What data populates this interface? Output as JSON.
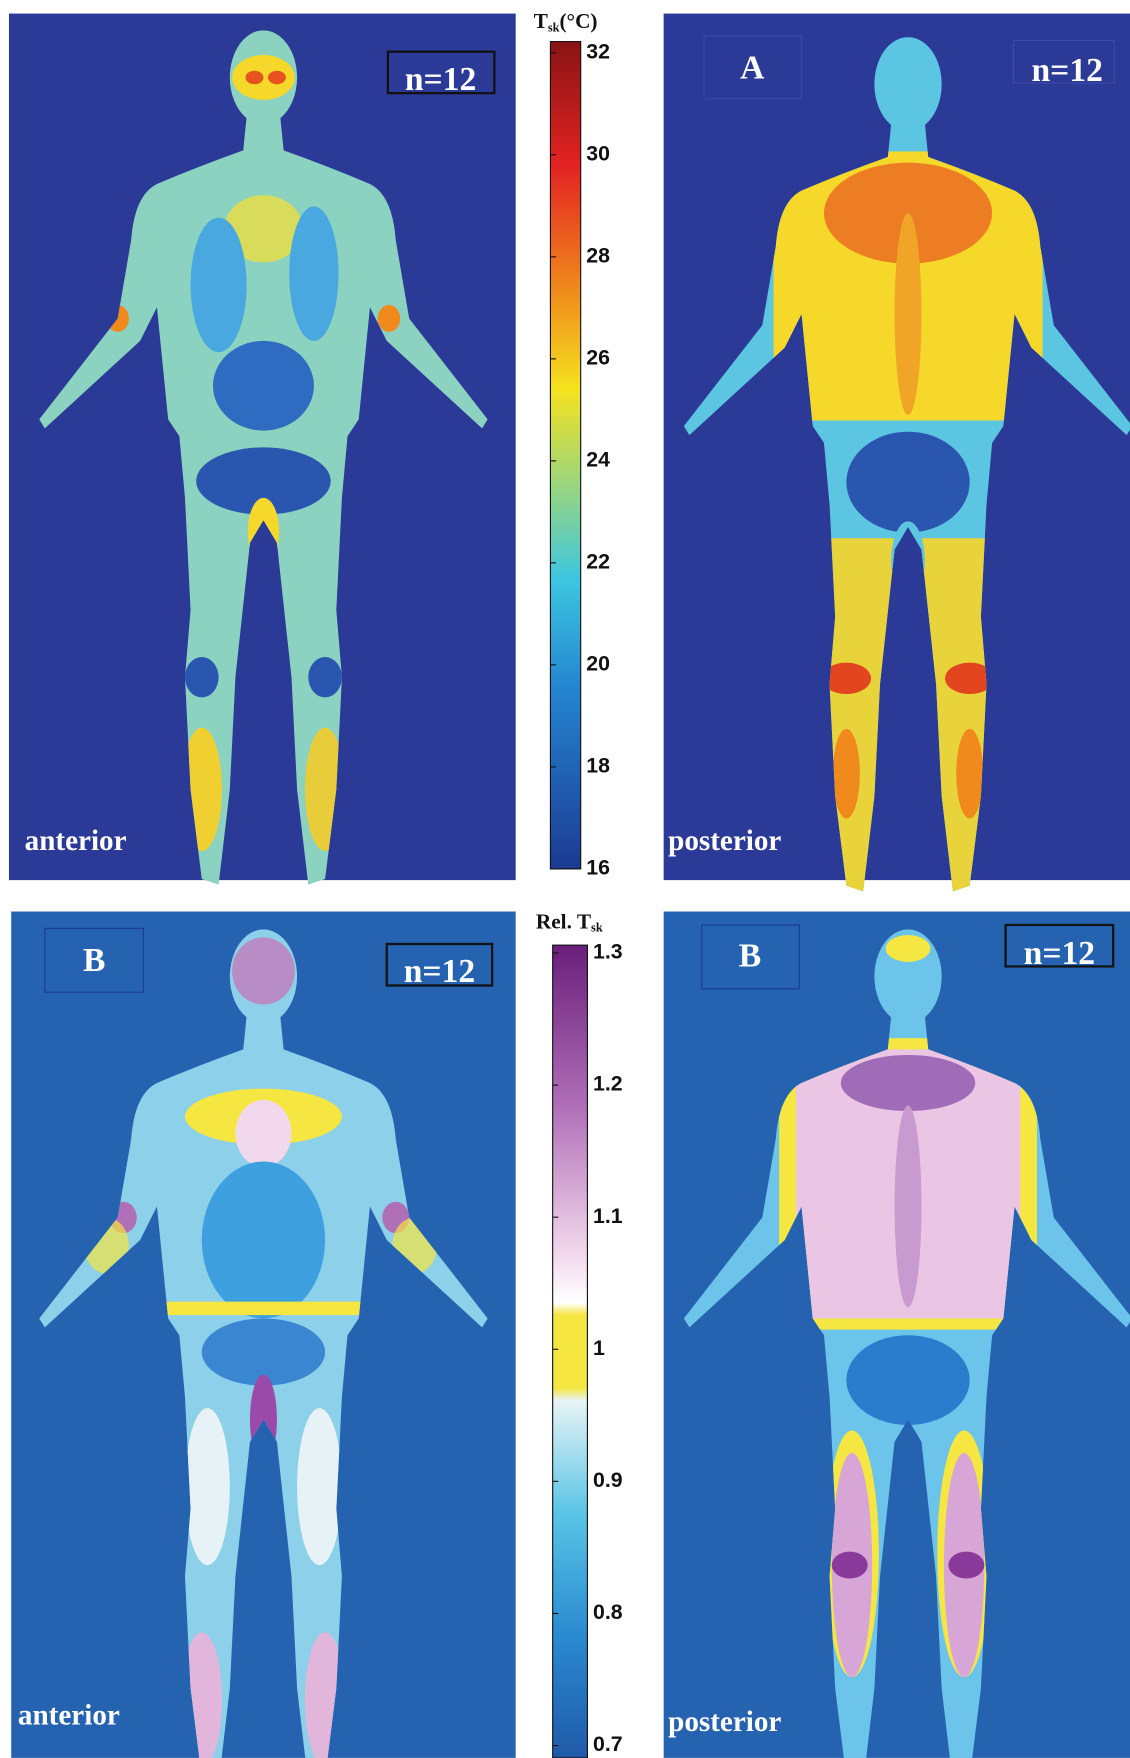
{
  "panels": [
    {
      "count_label": "n=12",
      "view_label": "anterior"
    },
    {
      "letter": "A",
      "count_label": "n=12",
      "view_label": "posterior"
    },
    {
      "letter": "B",
      "count_label": "n=12",
      "view_label": "anterior"
    },
    {
      "letter": "B",
      "count_label": "n=12",
      "view_label": "posterior"
    }
  ],
  "colorbars": [
    {
      "title": {
        "symbol": "T",
        "subscript": "sk",
        "unit": "(°C)"
      },
      "lim": [
        16,
        32
      ],
      "ticks": [
        32,
        30,
        28,
        26,
        24,
        22,
        20,
        18,
        16
      ]
    },
    {
      "title": {
        "prefix": "Rel. T",
        "subscript": "sk"
      },
      "lim": [
        0.7,
        1.3
      ],
      "ticks": [
        1.3,
        1.2,
        1.1,
        1,
        0.9,
        0.8,
        0.7
      ]
    }
  ]
}
